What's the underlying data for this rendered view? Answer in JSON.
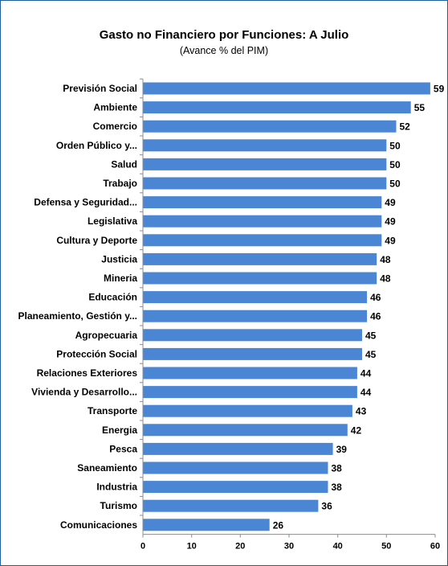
{
  "chart_data": {
    "type": "bar",
    "orientation": "horizontal",
    "title": "Gasto no Financiero por Funciones: A  Julio",
    "subtitle": "(Avance % del PIM)",
    "categories": [
      "Previsión Social",
      "Ambiente",
      "Comercio",
      "Orden Público y...",
      "Salud",
      "Trabajo",
      "Defensa y Seguridad...",
      "Legislativa",
      "Cultura y Deporte",
      "Justicia",
      "Mineria",
      "Educación",
      "Planeamiento, Gestión y...",
      "Agropecuaria",
      "Protección Social",
      "Relaciones Exteriores",
      "Vivienda y Desarrollo...",
      "Transporte",
      "Energia",
      "Pesca",
      "Saneamiento",
      "Industria",
      "Turismo",
      "Comunicaciones"
    ],
    "values": [
      59,
      55,
      52,
      50,
      50,
      50,
      49,
      49,
      49,
      48,
      48,
      46,
      46,
      45,
      45,
      44,
      44,
      43,
      42,
      39,
      38,
      38,
      36,
      26
    ],
    "xlim": [
      0,
      60
    ],
    "xticks": [
      0,
      10,
      20,
      30,
      40,
      50,
      60
    ],
    "bar_color": "#4a86d4",
    "grid": false,
    "legend": "none"
  }
}
